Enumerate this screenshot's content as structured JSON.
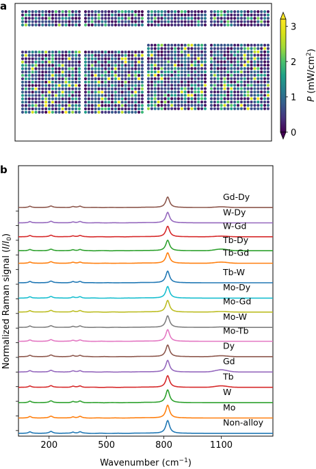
{
  "chart_data": [
    {
      "type": "heatmap",
      "panel_label": "a",
      "colorbar": {
        "label": "P (mW/cm²)",
        "label_symbol": "P",
        "label_unit_open": "(mW/cm",
        "label_unit_sup": "2",
        "label_unit_close": ")",
        "ticks": [
          0,
          1,
          2,
          3
        ],
        "tick_labels": [
          "0",
          "1",
          "2",
          "3"
        ],
        "range": [
          0,
          3.2
        ],
        "extend": "both",
        "colormap": "viridis"
      },
      "arrays": [
        {
          "name": "top-1",
          "rows": 5,
          "cols": 18
        },
        {
          "name": "top-2",
          "rows": 5,
          "cols": 18
        },
        {
          "name": "top-3",
          "rows": 5,
          "cols": 18
        },
        {
          "name": "top-4",
          "rows": 5,
          "cols": 18
        },
        {
          "name": "bottom-1",
          "rows": 19,
          "cols": 18
        },
        {
          "name": "bottom-2",
          "rows": 19,
          "cols": 18
        },
        {
          "name": "bottom-3",
          "rows": 20,
          "cols": 18
        },
        {
          "name": "bottom-4",
          "rows": 20,
          "cols": 18
        }
      ]
    },
    {
      "type": "line",
      "panel_label": "b",
      "xlabel": "Wavenumber (cm⁻¹)",
      "xlabel_text": "Wavenumber (cm",
      "xlabel_sup": "−1",
      "xlabel_close": ")",
      "ylabel": "Normalized Raman signal (I/I₀)",
      "ylabel_text": "Normalized Raman signal (",
      "ylabel_I": "I",
      "ylabel_slash": "/",
      "ylabel_I0": "I",
      "ylabel_sub": "0",
      "ylabel_close": ")",
      "xticks": [
        200,
        500,
        800,
        1100
      ],
      "xtick_labels": [
        "200",
        "500",
        "800",
        "1100"
      ],
      "xlim": [
        40,
        1370
      ],
      "ylim": [
        -0.02,
        1.92
      ],
      "yticks_unlabeled": 16,
      "peaks": [
        {
          "x": 100,
          "w": 9,
          "h": 0.45
        },
        {
          "x": 210,
          "w": 11,
          "h": 0.55
        },
        {
          "x": 325,
          "w": 9,
          "h": 0.35
        },
        {
          "x": 362,
          "w": 10,
          "h": 0.45
        },
        {
          "x": 820,
          "w": 12,
          "h": 3.8
        }
      ],
      "series": [
        {
          "name": "Non-alloy",
          "color": "#1f77b4",
          "offset": 0.0,
          "amp": 0.11,
          "bump1100": 0.0
        },
        {
          "name": "Mo",
          "color": "#ff7f0e",
          "offset": 0.11,
          "amp": 0.11,
          "bump1100": 0.0
        },
        {
          "name": "W",
          "color": "#2ca02c",
          "offset": 0.22,
          "amp": 0.11,
          "bump1100": 0.0
        },
        {
          "name": "Tb",
          "color": "#d62728",
          "offset": 0.33,
          "amp": 0.1,
          "bump1100": 0.08
        },
        {
          "name": "Gd",
          "color": "#9467bd",
          "offset": 0.44,
          "amp": 0.1,
          "bump1100": 0.12
        },
        {
          "name": "Dy",
          "color": "#8c564b",
          "offset": 0.55,
          "amp": 0.1,
          "bump1100": 0.05
        },
        {
          "name": "Mo-Tb",
          "color": "#e377c2",
          "offset": 0.66,
          "amp": 0.1,
          "bump1100": 0.0
        },
        {
          "name": "Mo-W",
          "color": "#7f7f7f",
          "offset": 0.76,
          "amp": 0.1,
          "bump1100": 0.02
        },
        {
          "name": "Mo-Gd",
          "color": "#bcbd22",
          "offset": 0.87,
          "amp": 0.1,
          "bump1100": 0.03
        },
        {
          "name": "Mo-Dy",
          "color": "#17becf",
          "offset": 0.97,
          "amp": 0.1,
          "bump1100": 0.0
        },
        {
          "name": "Tb-W",
          "color": "#1f77b4",
          "offset": 1.08,
          "amp": 0.1,
          "bump1100": 0.0
        },
        {
          "name": "Tb-Gd",
          "color": "#ff7f0e",
          "offset": 1.22,
          "amp": 0.09,
          "bump1100": 0.07
        },
        {
          "name": "Tb-Dy",
          "color": "#2ca02c",
          "offset": 1.31,
          "amp": 0.09,
          "bump1100": 0.1
        },
        {
          "name": "W-Gd",
          "color": "#d62728",
          "offset": 1.41,
          "amp": 0.09,
          "bump1100": 0.04
        },
        {
          "name": "W-Dy",
          "color": "#9467bd",
          "offset": 1.51,
          "amp": 0.09,
          "bump1100": 0.0
        },
        {
          "name": "Gd-Dy",
          "color": "#8c564b",
          "offset": 1.62,
          "amp": 0.09,
          "bump1100": 0.04
        }
      ]
    }
  ]
}
